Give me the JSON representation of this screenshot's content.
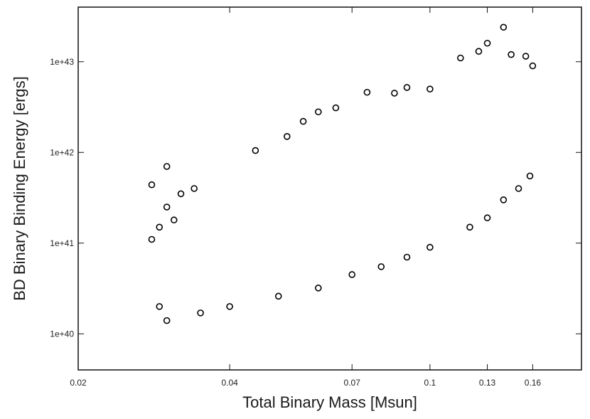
{
  "chart_data": {
    "type": "scatter",
    "title": "",
    "xlabel": "Total Binary Mass [Msun]",
    "ylabel": "BD Binary Binding Energy [ergs]",
    "xscale": "log",
    "yscale": "log",
    "xlim": [
      0.02,
      0.2
    ],
    "ylim": [
      4e+39,
      4e+43
    ],
    "grid": false,
    "legend": "none",
    "x_ticks": [
      0.02,
      0.04,
      0.07,
      0.1,
      0.13,
      0.16
    ],
    "x_tick_labels": [
      "0.02",
      "0.04",
      "0.07",
      "0.1",
      "0.13",
      "0.16"
    ],
    "y_ticks": [
      1e+40,
      1e+41,
      1e+42,
      1e+43
    ],
    "y_tick_labels": [
      "1e+40",
      "1e+41",
      "1e+42",
      "1e+43"
    ],
    "marker": "open-circle",
    "marker_color": "#000000",
    "series": [
      {
        "points": [
          [
            0.028,
            4.4e+41
          ],
          [
            0.03,
            7e+41
          ],
          [
            0.032,
            3.5e+41
          ],
          [
            0.034,
            4e+41
          ],
          [
            0.045,
            1.05e+42
          ],
          [
            0.052,
            1.5e+42
          ],
          [
            0.056,
            2.2e+42
          ],
          [
            0.06,
            2.8e+42
          ],
          [
            0.065,
            3.1e+42
          ],
          [
            0.075,
            4.6e+42
          ],
          [
            0.085,
            4.5e+42
          ],
          [
            0.09,
            5.2e+42
          ],
          [
            0.1,
            5e+42
          ],
          [
            0.115,
            1.1e+43
          ],
          [
            0.125,
            1.3e+43
          ],
          [
            0.13,
            1.6e+43
          ],
          [
            0.14,
            2.4e+43
          ],
          [
            0.145,
            1.2e+43
          ],
          [
            0.155,
            1.15e+43
          ],
          [
            0.16,
            9e+42
          ],
          [
            0.158,
            5.5e+41
          ],
          [
            0.15,
            4e+41
          ],
          [
            0.14,
            3e+41
          ],
          [
            0.13,
            1.9e+41
          ],
          [
            0.12,
            1.5e+41
          ],
          [
            0.1,
            9e+40
          ],
          [
            0.09,
            7e+40
          ],
          [
            0.08,
            5.5e+40
          ],
          [
            0.07,
            4.5e+40
          ],
          [
            0.06,
            3.2e+40
          ],
          [
            0.05,
            2.6e+40
          ],
          [
            0.04,
            2e+40
          ],
          [
            0.035,
            1.7e+40
          ],
          [
            0.03,
            1.4e+40
          ],
          [
            0.029,
            2e+40
          ],
          [
            0.029,
            1.5e+41
          ],
          [
            0.028,
            1.1e+41
          ],
          [
            0.03,
            2.5e+41
          ],
          [
            0.031,
            1.8e+41
          ]
        ]
      }
    ]
  }
}
